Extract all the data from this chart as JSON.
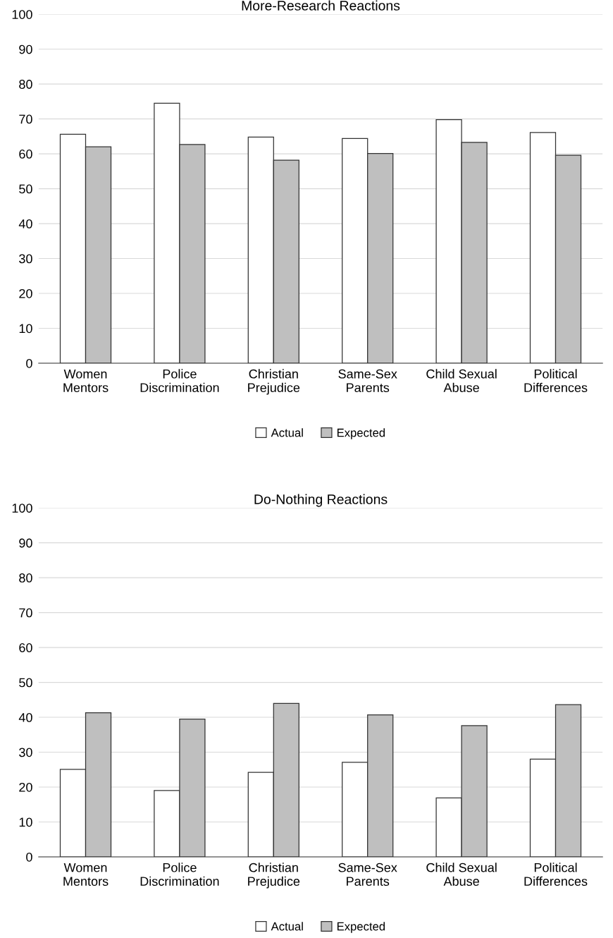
{
  "chart_data": [
    {
      "type": "bar",
      "title": "More-Research Reactions",
      "categories": [
        "Women\nMentors",
        "Police\nDiscrimination",
        "Christian\nPrejudice",
        "Same-Sex\nParents",
        "Child Sexual\nAbuse",
        "Political\nDifferences"
      ],
      "series": [
        {
          "name": "Actual",
          "color": "#ffffff",
          "values": [
            65.6,
            74.5,
            64.8,
            64.4,
            69.8,
            66.1
          ]
        },
        {
          "name": "Expected",
          "color": "#bfbfbf",
          "values": [
            62.0,
            62.7,
            58.2,
            60.1,
            63.3,
            59.6
          ]
        }
      ],
      "ylim": [
        0,
        100
      ],
      "yticks": [
        0,
        10,
        20,
        30,
        40,
        50,
        60,
        70,
        80,
        90,
        100
      ],
      "grid": "y",
      "legend": "bottom"
    },
    {
      "type": "bar",
      "title": "Do-Nothing Reactions",
      "categories": [
        "Women\nMentors",
        "Police\nDiscrimination",
        "Christian\nPrejudice",
        "Same-Sex\nParents",
        "Child Sexual\nAbuse",
        "Political\nDifferences"
      ],
      "series": [
        {
          "name": "Actual",
          "color": "#ffffff",
          "values": [
            25.1,
            19.0,
            24.2,
            27.1,
            16.9,
            28.0
          ]
        },
        {
          "name": "Expected",
          "color": "#bfbfbf",
          "values": [
            41.3,
            39.5,
            44.0,
            40.7,
            37.6,
            43.6
          ]
        }
      ],
      "ylim": [
        0,
        100
      ],
      "yticks": [
        0,
        10,
        20,
        30,
        40,
        50,
        60,
        70,
        80,
        90,
        100
      ],
      "grid": "y",
      "legend": "bottom"
    }
  ]
}
